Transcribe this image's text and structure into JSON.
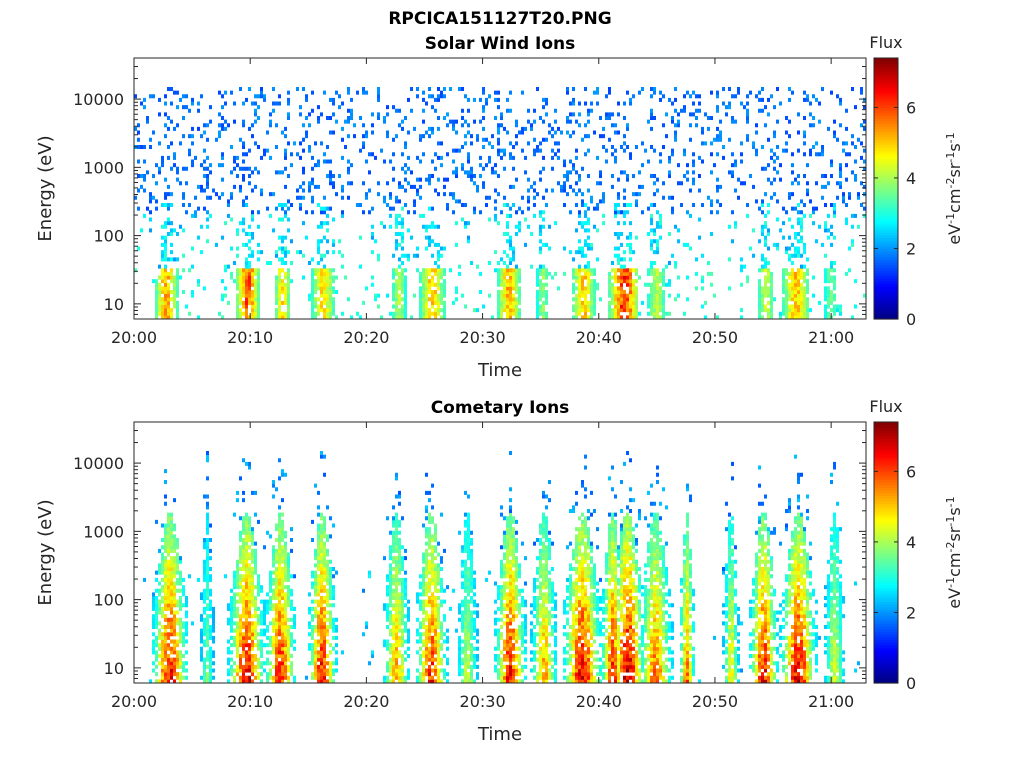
{
  "figure": {
    "title": "RPCICA151127T20.PNG"
  },
  "colorbar": {
    "label": "Flux",
    "units_base": "eV",
    "units_parts": [
      {
        "t": "eV",
        "sup": "-1"
      },
      {
        "t": "cm",
        "sup": "-2"
      },
      {
        "t": "sr",
        "sup": "-1"
      },
      {
        "t": "s",
        "sup": "-1"
      }
    ],
    "range": [
      0,
      7.4
    ],
    "ticks": [
      "0",
      "2",
      "4",
      "6"
    ],
    "tick_values": [
      0,
      2,
      4,
      6
    ],
    "colormap": "jet"
  },
  "chart_data": [
    {
      "type": "heatmap",
      "title": "Solar Wind Ions",
      "xlabel": "Time",
      "ylabel": "Energy (eV)",
      "x_range_minutes": [
        0,
        63
      ],
      "x_ticks": [
        "20:00",
        "20:10",
        "20:20",
        "20:30",
        "20:40",
        "20:50",
        "21:00"
      ],
      "x_tick_minutes": [
        0,
        10,
        20,
        30,
        40,
        50,
        60
      ],
      "y_scale": "log",
      "ylim": [
        6,
        40000
      ],
      "y_ticks": [
        "10",
        "100",
        "1000",
        "10000"
      ],
      "y_tick_values": [
        10,
        100,
        1000,
        10000
      ],
      "color_range": [
        0,
        7.4
      ],
      "bursts": [
        {
          "t": 2.8,
          "width": 1.0,
          "flux": 5.4
        },
        {
          "t": 9.8,
          "width": 1.0,
          "flux": 6.2
        },
        {
          "t": 12.8,
          "width": 0.7,
          "flux": 5.0
        },
        {
          "t": 16.3,
          "width": 1.0,
          "flux": 5.0
        },
        {
          "t": 22.8,
          "width": 0.6,
          "flux": 4.2
        },
        {
          "t": 25.7,
          "width": 1.1,
          "flux": 5.2
        },
        {
          "t": 32.3,
          "width": 1.0,
          "flux": 5.4
        },
        {
          "t": 35.2,
          "width": 0.5,
          "flux": 4.0
        },
        {
          "t": 38.7,
          "width": 1.0,
          "flux": 5.2
        },
        {
          "t": 42.2,
          "width": 1.3,
          "flux": 6.4
        },
        {
          "t": 45.0,
          "width": 0.8,
          "flux": 4.2
        },
        {
          "t": 54.4,
          "width": 0.7,
          "flux": 4.4
        },
        {
          "t": 57.0,
          "width": 1.2,
          "flux": 5.2
        },
        {
          "t": 60.0,
          "width": 0.5,
          "flux": 3.8
        }
      ]
    },
    {
      "type": "heatmap",
      "title": "Cometary Ions",
      "xlabel": "Time",
      "ylabel": "Energy (eV)",
      "x_range_minutes": [
        0,
        63
      ],
      "x_ticks": [
        "20:00",
        "20:10",
        "20:20",
        "20:30",
        "20:40",
        "20:50",
        "21:00"
      ],
      "x_tick_minutes": [
        0,
        10,
        20,
        30,
        40,
        50,
        60
      ],
      "y_scale": "log",
      "ylim": [
        6,
        40000
      ],
      "y_ticks": [
        "10",
        "100",
        "1000",
        "10000"
      ],
      "y_tick_values": [
        10,
        100,
        1000,
        10000
      ],
      "color_range": [
        0,
        7.4
      ],
      "bursts": [
        {
          "t": 3.1,
          "width": 1.4,
          "flux": 6.8
        },
        {
          "t": 6.3,
          "width": 0.5,
          "flux": 3.8
        },
        {
          "t": 9.7,
          "width": 1.4,
          "flux": 7.0
        },
        {
          "t": 12.6,
          "width": 1.2,
          "flux": 6.6
        },
        {
          "t": 16.2,
          "width": 1.1,
          "flux": 6.8
        },
        {
          "t": 22.6,
          "width": 1.0,
          "flux": 5.6
        },
        {
          "t": 25.6,
          "width": 1.2,
          "flux": 6.6
        },
        {
          "t": 28.7,
          "width": 0.8,
          "flux": 4.4
        },
        {
          "t": 32.4,
          "width": 1.2,
          "flux": 6.8
        },
        {
          "t": 35.3,
          "width": 1.0,
          "flux": 5.6
        },
        {
          "t": 38.6,
          "width": 1.5,
          "flux": 7.0
        },
        {
          "t": 41.2,
          "width": 0.9,
          "flux": 6.6
        },
        {
          "t": 42.5,
          "width": 1.4,
          "flux": 7.2
        },
        {
          "t": 44.9,
          "width": 1.3,
          "flux": 6.0
        },
        {
          "t": 47.6,
          "width": 0.6,
          "flux": 6.0
        },
        {
          "t": 51.4,
          "width": 0.6,
          "flux": 5.0
        },
        {
          "t": 54.2,
          "width": 1.1,
          "flux": 6.8
        },
        {
          "t": 57.2,
          "width": 1.4,
          "flux": 7.0
        },
        {
          "t": 60.3,
          "width": 0.8,
          "flux": 4.6
        }
      ]
    }
  ]
}
